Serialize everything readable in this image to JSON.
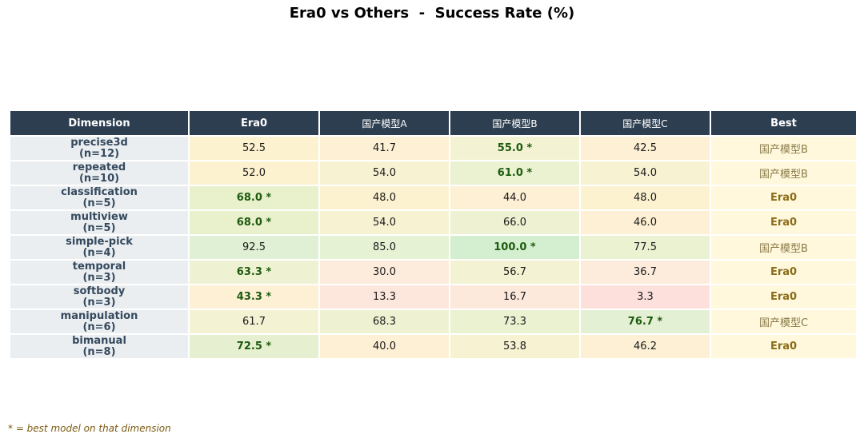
{
  "chart_data": {
    "type": "table",
    "title": "Era0 vs Others  -  Success Rate (%)",
    "columns": [
      "Dimension",
      "Era0",
      "国产模型A",
      "国产模型B",
      "国产模型C",
      "Best"
    ],
    "rows": [
      {
        "dimension": "precise3d",
        "n": "(n=12)",
        "values": [
          "52.5",
          "41.7",
          "55.0 *",
          "42.5"
        ],
        "best": "国产模型B"
      },
      {
        "dimension": "repeated",
        "n": "(n=10)",
        "values": [
          "52.0",
          "54.0",
          "61.0 *",
          "54.0"
        ],
        "best": "国产模型B"
      },
      {
        "dimension": "classification",
        "n": "(n=5)",
        "values": [
          "68.0 *",
          "48.0",
          "44.0",
          "48.0"
        ],
        "best": "Era0"
      },
      {
        "dimension": "multiview",
        "n": "(n=5)",
        "values": [
          "68.0 *",
          "54.0",
          "66.0",
          "46.0"
        ],
        "best": "Era0"
      },
      {
        "dimension": "simple-pick",
        "n": "(n=4)",
        "values": [
          "92.5",
          "85.0",
          "100.0 *",
          "77.5"
        ],
        "best": "国产模型B"
      },
      {
        "dimension": "temporal",
        "n": "(n=3)",
        "values": [
          "63.3 *",
          "30.0",
          "56.7",
          "36.7"
        ],
        "best": "Era0"
      },
      {
        "dimension": "softbody",
        "n": "(n=3)",
        "values": [
          "43.3 *",
          "13.3",
          "16.7",
          "3.3"
        ],
        "best": "Era0"
      },
      {
        "dimension": "manipulation",
        "n": "(n=6)",
        "values": [
          "61.7",
          "68.3",
          "73.3",
          "76.7 *"
        ],
        "best": "国产模型C"
      },
      {
        "dimension": "bimanual",
        "n": "(n=8)",
        "values": [
          "72.5 *",
          "40.0",
          "53.8",
          "46.2"
        ],
        "best": "Era0"
      }
    ],
    "cell_colors": [
      [
        "#fdf2d0",
        "#fdf0d4",
        "#f3f3d4",
        "#fdf0d4"
      ],
      [
        "#fdf2d0",
        "#f7f2d2",
        "#eaf2d2",
        "#f7f2d2"
      ],
      [
        "#e8f0cc",
        "#fdf2d0",
        "#fdf0d4",
        "#fdf2d0"
      ],
      [
        "#e8f0cc",
        "#f7f2d2",
        "#eef2d2",
        "#fdf0d4"
      ],
      [
        "#e0f0d4",
        "#e6f2d4",
        "#d4efd0",
        "#eaf2d2"
      ],
      [
        "#eef2d2",
        "#fdecdc",
        "#f3f3d4",
        "#fdecdc"
      ],
      [
        "#fdf0d4",
        "#fde6dc",
        "#fde8dc",
        "#fde0dc"
      ],
      [
        "#f3f3d4",
        "#eef2d2",
        "#eaf2d2",
        "#e3f0d4"
      ],
      [
        "#e6f0d0",
        "#fdf0d4",
        "#f7f2d2",
        "#fdf0d4"
      ]
    ],
    "footnote": "* = best model on that dimension"
  }
}
